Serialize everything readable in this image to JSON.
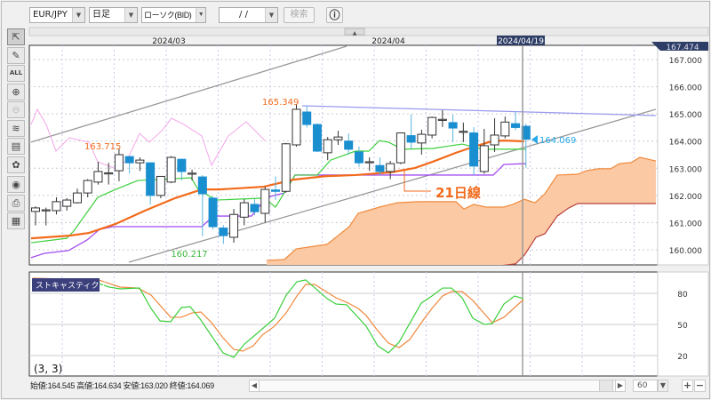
{
  "toolbar": {
    "symbol": "EUR/JPY",
    "timeframe": "日足",
    "chart_type": "ローソク(BID)",
    "date_input": "/ /",
    "search_label": "検索",
    "info_icon": "info-circle-icon"
  },
  "left_tools": [
    {
      "name": "cursor-icon",
      "glyph": "⇱"
    },
    {
      "name": "pencil-icon",
      "glyph": "✎"
    },
    {
      "name": "erase-all-icon",
      "glyph": "ALL"
    },
    {
      "name": "zoom-in-icon",
      "glyph": "⊕"
    },
    {
      "name": "zoom-out-icon",
      "glyph": "⊖"
    },
    {
      "name": "indicator-icon",
      "glyph": "≋"
    },
    {
      "name": "numbers-table-icon",
      "glyph": "▤"
    },
    {
      "name": "shapes-icon",
      "glyph": "✿"
    },
    {
      "name": "eye-icon",
      "glyph": "◉"
    },
    {
      "name": "printer-icon",
      "glyph": "⎙"
    },
    {
      "name": "grid-table-icon",
      "glyph": "▦"
    }
  ],
  "header": {
    "month_labels": [
      "2024/03",
      "2024/04"
    ],
    "cursor_date": "2024/04/19",
    "top_price": "167.474",
    "scroll_up": "▲"
  },
  "annotations": {
    "high_1": "163.715",
    "high_2": "165.349",
    "low_1": "160.217",
    "last_price": "164.069",
    "ma_label": "21日線"
  },
  "stoch": {
    "title": "ストキャスティクス",
    "params": "(3, 3)"
  },
  "status": {
    "open": "始値:164.545",
    "high": "高値:164.634",
    "low": "安値:163.020",
    "close": "終値:164.069",
    "bars": "60",
    "left_arrow": "◀",
    "right_arrow": "▶",
    "plus": "+",
    "minus": "−",
    "dropdown": "▼"
  },
  "colors": {
    "up_body": "#ffffff",
    "down_body": "#1a8fd0",
    "ma21": "#f26a1b",
    "conversion": "#3ccf3c",
    "base": "#a24df0",
    "lagging": "#f4a6e8",
    "cloud": "#fbc9a4",
    "span_a": "#f08a3c",
    "span_b": "#b8403c",
    "resistance": "#9999ee",
    "trend": "#999999",
    "stoch_k": "#3ccf3c",
    "stoch_d": "#f0883c",
    "cursor_label": "#2e3d66"
  },
  "chart_data": [
    {
      "type": "candlestick",
      "title": "",
      "x_unit": "bar index",
      "ylim": [
        159.44,
        167.65
      ],
      "y_ticks": [
        "160.000",
        "161.000",
        "162.000",
        "163.000",
        "164.000",
        "165.000",
        "166.000",
        "167.000"
      ],
      "grid": true,
      "candles_ohlc": [
        [
          161.41,
          161.6,
          160.9,
          161.54
        ],
        [
          161.47,
          161.55,
          160.9,
          161.47
        ],
        [
          161.44,
          161.93,
          161.3,
          161.77
        ],
        [
          161.6,
          161.9,
          161.44,
          161.83
        ],
        [
          161.73,
          162.25,
          161.7,
          162.09
        ],
        [
          162.09,
          162.6,
          161.93,
          162.55
        ],
        [
          162.49,
          163.24,
          162.4,
          162.88
        ],
        [
          162.81,
          163.2,
          162.4,
          162.83
        ],
        [
          162.91,
          163.715,
          162.52,
          163.5
        ],
        [
          163.43,
          163.45,
          162.8,
          163.2
        ],
        [
          163.2,
          163.4,
          162.9,
          163.3
        ],
        [
          163.2,
          163.2,
          161.67,
          162.0
        ],
        [
          162.0,
          162.7,
          161.9,
          162.7
        ],
        [
          162.49,
          163.45,
          162.45,
          163.4
        ],
        [
          163.33,
          163.35,
          162.55,
          162.88
        ],
        [
          162.8,
          162.95,
          162.55,
          162.82
        ],
        [
          162.68,
          162.75,
          160.5,
          162.06
        ],
        [
          161.9,
          161.95,
          160.75,
          160.85
        ],
        [
          160.8,
          160.9,
          160.217,
          160.52
        ],
        [
          160.46,
          161.5,
          160.26,
          161.3
        ],
        [
          161.2,
          161.86,
          160.9,
          161.73
        ],
        [
          161.67,
          161.86,
          161.27,
          161.4
        ],
        [
          161.34,
          162.32,
          161.0,
          162.22
        ],
        [
          162.2,
          162.7,
          161.83,
          162.15
        ],
        [
          162.15,
          163.93,
          162.1,
          163.9
        ],
        [
          163.86,
          165.349,
          163.8,
          165.17
        ],
        [
          165.07,
          165.3,
          164.5,
          164.61
        ],
        [
          164.61,
          164.65,
          163.6,
          163.63
        ],
        [
          163.57,
          164.15,
          163.3,
          164.05
        ],
        [
          164.05,
          164.38,
          163.86,
          164.15
        ],
        [
          164.0,
          164.28,
          163.5,
          163.7
        ],
        [
          163.6,
          163.8,
          163.05,
          163.2
        ],
        [
          163.24,
          163.4,
          162.9,
          163.24
        ],
        [
          163.1,
          163.4,
          162.75,
          162.88
        ],
        [
          162.88,
          163.27,
          162.6,
          163.17
        ],
        [
          163.2,
          164.32,
          163.15,
          164.3
        ],
        [
          164.2,
          164.98,
          163.73,
          163.96
        ],
        [
          163.93,
          164.42,
          163.5,
          164.25
        ],
        [
          164.22,
          164.9,
          164.1,
          164.87
        ],
        [
          164.78,
          165.14,
          164.52,
          164.8
        ],
        [
          164.68,
          164.97,
          163.96,
          164.48
        ],
        [
          164.32,
          164.68,
          163.96,
          164.36
        ],
        [
          164.3,
          164.51,
          162.75,
          163.08
        ],
        [
          162.88,
          164.45,
          162.8,
          163.83
        ],
        [
          163.86,
          164.84,
          163.6,
          164.22
        ],
        [
          164.19,
          164.9,
          164.1,
          164.7
        ],
        [
          164.64,
          165.1,
          164.4,
          164.5
        ],
        [
          164.545,
          164.634,
          163.02,
          164.069
        ]
      ],
      "lines": {
        "ma21": [
          [
            -0.43,
            160.42
          ],
          [
            3.24,
            160.52
          ],
          [
            5.11,
            160.62
          ],
          [
            7.67,
            160.95
          ],
          [
            10.48,
            161.44
          ],
          [
            13.37,
            161.9
          ],
          [
            15.93,
            162.22
          ],
          [
            17.63,
            162.22
          ],
          [
            21.89,
            162.32
          ],
          [
            24.7,
            162.58
          ],
          [
            27.85,
            162.71
          ],
          [
            30.66,
            162.75
          ],
          [
            34.07,
            162.85
          ],
          [
            36.37,
            163.01
          ],
          [
            38.07,
            163.24
          ],
          [
            40.29,
            163.57
          ],
          [
            41.99,
            163.79
          ],
          [
            43.7,
            163.99
          ],
          [
            44.89,
            164.02
          ],
          [
            46.85,
            163.99
          ]
        ],
        "conversion": [
          [
            -0.43,
            160.26
          ],
          [
            2.98,
            160.42
          ],
          [
            3.66,
            160.69
          ],
          [
            5.96,
            161.93
          ],
          [
            7.92,
            162.26
          ],
          [
            9.8,
            162.55
          ],
          [
            14.91,
            162.65
          ],
          [
            15.59,
            162.22
          ],
          [
            17.29,
            161.83
          ],
          [
            21.89,
            161.9
          ],
          [
            23.0,
            161.57
          ],
          [
            24.87,
            162.75
          ],
          [
            27.0,
            162.75
          ],
          [
            28.28,
            163.3
          ],
          [
            30.66,
            163.63
          ],
          [
            31.94,
            163.63
          ],
          [
            32.96,
            164.02
          ],
          [
            33.82,
            163.96
          ],
          [
            35.18,
            163.7
          ],
          [
            38.07,
            163.73
          ],
          [
            40.89,
            163.89
          ],
          [
            42.84,
            163.7
          ],
          [
            47.02,
            163.7
          ]
        ],
        "base": [
          [
            -0.43,
            159.71
          ],
          [
            0.85,
            159.87
          ],
          [
            3.15,
            159.97
          ],
          [
            4.94,
            160.36
          ],
          [
            6.13,
            160.75
          ],
          [
            7.41,
            160.85
          ],
          [
            15.93,
            160.85
          ],
          [
            17.04,
            161.24
          ],
          [
            20.7,
            161.24
          ],
          [
            22.15,
            161.93
          ],
          [
            23.85,
            162.09
          ],
          [
            24.87,
            162.75
          ],
          [
            43.87,
            162.75
          ],
          [
            44.89,
            163.14
          ],
          [
            47.02,
            163.17
          ]
        ],
        "lagging": [
          [
            -0.43,
            164.61
          ],
          [
            0.17,
            165.17
          ],
          [
            1.02,
            164.61
          ],
          [
            1.96,
            163.63
          ],
          [
            3.24,
            164.12
          ],
          [
            5.11,
            163.96
          ],
          [
            5.96,
            163.24
          ],
          [
            7.67,
            162.98
          ],
          [
            8.77,
            163.3
          ],
          [
            9.97,
            164.28
          ],
          [
            10.9,
            163.96
          ],
          [
            12.1,
            164.38
          ],
          [
            13.03,
            164.84
          ],
          [
            14.22,
            164.61
          ],
          [
            15.93,
            164.19
          ],
          [
            16.87,
            163.11
          ],
          [
            18.48,
            164.19
          ],
          [
            20.19,
            164.71
          ],
          [
            21.98,
            164.02
          ]
        ],
        "span_a": [
          [
            22.15,
            159.61
          ],
          [
            23.85,
            159.64
          ],
          [
            24.96,
            160.03
          ],
          [
            27.94,
            160.2
          ],
          [
            30.07,
            160.85
          ],
          [
            30.92,
            161.34
          ],
          [
            32.96,
            161.57
          ],
          [
            34.67,
            161.73
          ],
          [
            36.63,
            161.77
          ],
          [
            40.29,
            161.77
          ],
          [
            41.06,
            161.5
          ],
          [
            41.99,
            161.67
          ],
          [
            43.19,
            161.57
          ],
          [
            44.89,
            161.57
          ],
          [
            45.74,
            161.67
          ],
          [
            46.85,
            161.86
          ],
          [
            47.87,
            161.73
          ],
          [
            48.81,
            162.06
          ],
          [
            50.0,
            162.75
          ],
          [
            51.96,
            162.78
          ],
          [
            52.81,
            162.91
          ],
          [
            53.92,
            162.98
          ],
          [
            55.11,
            162.98
          ],
          [
            55.96,
            163.17
          ],
          [
            57.07,
            163.21
          ],
          [
            57.92,
            163.4
          ],
          [
            59.45,
            163.27
          ]
        ],
        "span_b": [
          [
            22.15,
            158.4
          ],
          [
            46.0,
            159.48
          ],
          [
            46.85,
            159.8
          ],
          [
            47.96,
            160.46
          ],
          [
            48.81,
            160.59
          ],
          [
            50.0,
            161.24
          ],
          [
            51.11,
            161.54
          ],
          [
            51.96,
            161.7
          ],
          [
            59.45,
            161.7
          ]
        ],
        "trend_upper": [
          [
            -0.43,
            163.96
          ],
          [
            29.81,
            167.49
          ]
        ],
        "trend_lower": [
          [
            8.94,
            159.54
          ],
          [
            59.45,
            165.17
          ]
        ],
        "resistance": [
          [
            25.55,
            165.3
          ],
          [
            59.45,
            164.94
          ]
        ]
      }
    },
    {
      "type": "line",
      "title": "ストキャスティクス",
      "x_unit": "bar index",
      "ylim": [
        1,
        100
      ],
      "y_ticks": [
        "80",
        "50",
        "20"
      ],
      "series": [
        {
          "key": "k",
          "values": [
            [
              -0.26,
              92.9
            ],
            [
              5.79,
              90.3
            ],
            [
              7.07,
              86
            ],
            [
              8.09,
              84.3
            ],
            [
              9.97,
              85.1
            ],
            [
              11.07,
              65.4
            ],
            [
              11.93,
              53.4
            ],
            [
              12.95,
              52.6
            ],
            [
              13.97,
              66.3
            ],
            [
              14.82,
              67.1
            ],
            [
              15.84,
              54.3
            ],
            [
              17.97,
              22.6
            ],
            [
              18.99,
              18.3
            ],
            [
              20.02,
              31.1
            ],
            [
              21.04,
              39.7
            ],
            [
              22.91,
              56
            ],
            [
              24.02,
              78.3
            ],
            [
              25.04,
              91.1
            ],
            [
              25.89,
              92.9
            ],
            [
              27.94,
              74.9
            ],
            [
              28.79,
              69.7
            ],
            [
              29.81,
              68.9
            ],
            [
              31.69,
              48.3
            ],
            [
              32.79,
              29.4
            ],
            [
              33.82,
              22.6
            ],
            [
              34.84,
              32.9
            ],
            [
              36.97,
              70.6
            ],
            [
              37.99,
              77.4
            ],
            [
              39.01,
              85.1
            ],
            [
              39.86,
              85.1
            ],
            [
              40.89,
              75.7
            ],
            [
              41.91,
              56
            ],
            [
              43.02,
              50
            ],
            [
              43.78,
              50.9
            ],
            [
              44.89,
              69.7
            ],
            [
              45.91,
              77.4
            ],
            [
              46.76,
              74.9
            ]
          ]
        },
        {
          "key": "d",
          "values": [
            [
              -0.26,
              94.6
            ],
            [
              6.05,
              92.9
            ],
            [
              8.09,
              86
            ],
            [
              9.8,
              85.1
            ],
            [
              11.07,
              78.3
            ],
            [
              12.95,
              56.9
            ],
            [
              13.97,
              56.9
            ],
            [
              14.99,
              61.1
            ],
            [
              15.84,
              62
            ],
            [
              16.87,
              51.7
            ],
            [
              17.97,
              37.1
            ],
            [
              18.99,
              26
            ],
            [
              19.85,
              24.3
            ],
            [
              20.87,
              29.4
            ],
            [
              21.72,
              39.7
            ],
            [
              22.91,
              48.3
            ],
            [
              24.02,
              61.1
            ],
            [
              25.04,
              77.4
            ],
            [
              25.89,
              88.6
            ],
            [
              26.75,
              88.6
            ],
            [
              28.79,
              75.7
            ],
            [
              29.81,
              71.4
            ],
            [
              30.92,
              65.4
            ],
            [
              31.69,
              58.6
            ],
            [
              32.79,
              44
            ],
            [
              33.82,
              32
            ],
            [
              34.84,
              27.7
            ],
            [
              35.86,
              35.4
            ],
            [
              36.97,
              51.7
            ],
            [
              37.99,
              65.4
            ],
            [
              39.01,
              77.4
            ],
            [
              39.86,
              81.7
            ],
            [
              40.89,
              81.7
            ],
            [
              41.91,
              73.1
            ],
            [
              43.02,
              60.3
            ],
            [
              43.78,
              51.7
            ],
            [
              44.89,
              56.9
            ],
            [
              46.76,
              74
            ]
          ]
        }
      ]
    }
  ]
}
